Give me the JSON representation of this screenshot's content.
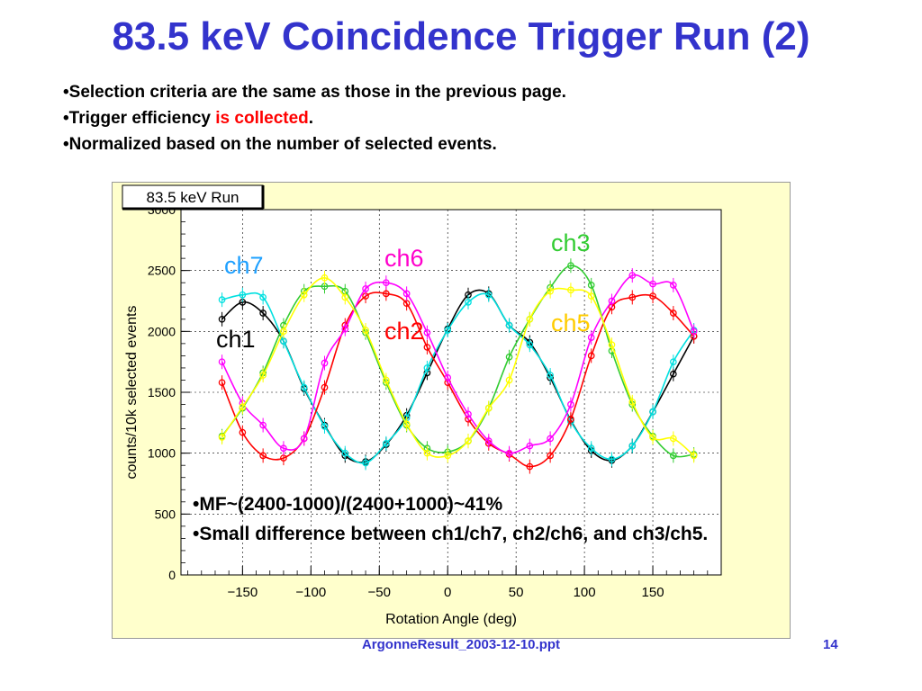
{
  "slide": {
    "title": "83.5 keV Coincidence Trigger Run (2)",
    "bullets": [
      {
        "parts": [
          {
            "text": "•Selection criteria are the same as those in the previous page."
          }
        ]
      },
      {
        "parts": [
          {
            "text": "•Trigger efficiency "
          },
          {
            "text": "is collected",
            "color": "#ff0000"
          },
          {
            "text": "."
          }
        ]
      },
      {
        "parts": [
          {
            "text": "•Normalized based on the number of selected events."
          }
        ]
      }
    ],
    "overlay_bullets": [
      "•MF~(2400-1000)/(2400+1000)~41%",
      "•Small difference between ch1/ch7, ch2/ch6, and ch3/ch5."
    ],
    "footer_file": "ArgonneResult_2003-12-10.ppt",
    "footer_page": "14",
    "colors": {
      "title": "#3333cc",
      "chart_bg": "#ffffcc",
      "highlight": "#ff0000"
    }
  },
  "chart_data": {
    "type": "line",
    "title": "83.5 keV Run",
    "xlabel": "Rotation Angle (deg)",
    "ylabel": "counts/10k selected events",
    "xlim": [
      -195,
      200
    ],
    "ylim": [
      0,
      3000
    ],
    "xticks": [
      -150,
      -100,
      -50,
      0,
      50,
      100,
      150
    ],
    "yticks": [
      0,
      500,
      1000,
      1500,
      2000,
      2500,
      3000
    ],
    "grid": true,
    "x": [
      -165,
      -150,
      -135,
      -120,
      -105,
      -90,
      -75,
      -60,
      -45,
      -30,
      -15,
      0,
      15,
      30,
      45,
      60,
      75,
      90,
      105,
      120,
      135,
      150,
      165,
      180
    ],
    "series": [
      {
        "name": "ch1",
        "color": "#000000",
        "values": [
          2100,
          2240,
          2150,
          1920,
          1530,
          1230,
          980,
          930,
          1070,
          1310,
          1660,
          2020,
          2300,
          2310,
          2050,
          1910,
          1620,
          1270,
          1020,
          940,
          1060,
          1340,
          1650,
          1960
        ]
      },
      {
        "name": "ch7",
        "color": "#00e0e0",
        "values": [
          2260,
          2300,
          2280,
          1920,
          1540,
          1220,
          1000,
          920,
          1080,
          1290,
          1700,
          2010,
          2240,
          2300,
          2050,
          1890,
          1640,
          1260,
          1040,
          950,
          1060,
          1340,
          1750,
          2010
        ]
      },
      {
        "name": "ch2",
        "color": "#ff0000",
        "values": [
          1580,
          1170,
          980,
          960,
          1120,
          1540,
          2050,
          2290,
          2310,
          2230,
          1870,
          1580,
          1280,
          1080,
          990,
          890,
          980,
          1280,
          1800,
          2200,
          2280,
          2290,
          2150,
          1960
        ]
      },
      {
        "name": "ch6",
        "color": "#ff00ff",
        "values": [
          1750,
          1410,
          1230,
          1040,
          1120,
          1740,
          2020,
          2350,
          2400,
          2310,
          1990,
          1620,
          1320,
          1100,
          1000,
          1060,
          1120,
          1400,
          1950,
          2250,
          2460,
          2390,
          2380,
          2000
        ]
      },
      {
        "name": "ch3",
        "color": "#33cc33",
        "values": [
          1140,
          1370,
          1660,
          2050,
          2330,
          2370,
          2330,
          1990,
          1580,
          1230,
          1040,
          1010,
          1100,
          1370,
          1790,
          2100,
          2360,
          2540,
          2380,
          1840,
          1400,
          1140,
          980,
          990
        ]
      },
      {
        "name": "ch5",
        "color": "#ffff00",
        "values": [
          1130,
          1380,
          1640,
          2000,
          2300,
          2440,
          2280,
          2010,
          1600,
          1240,
          1000,
          980,
          1100,
          1370,
          1600,
          2100,
          2330,
          2340,
          2290,
          1890,
          1420,
          1130,
          1120,
          980
        ]
      }
    ],
    "annotations": [
      {
        "text": "ch7",
        "color": "#1ea0ff"
      },
      {
        "text": "ch1",
        "color": "#000000"
      },
      {
        "text": "ch6",
        "color": "#ff00cc"
      },
      {
        "text": "ch2",
        "color": "#ff0000"
      },
      {
        "text": "ch3",
        "color": "#33cc33"
      },
      {
        "text": "ch5",
        "color": "#ffcc00"
      }
    ]
  }
}
